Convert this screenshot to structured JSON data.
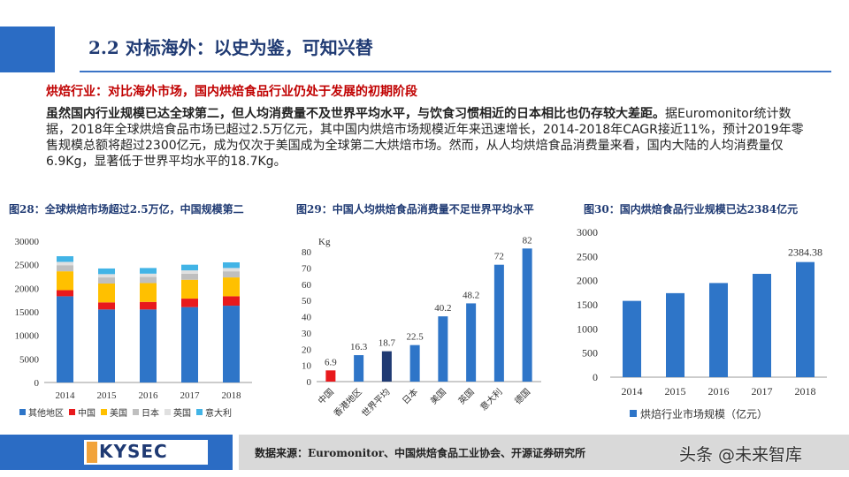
{
  "header": {
    "title": "2.2 对标海外：以史为鉴，可知兴替"
  },
  "sub_heading": "烘焙行业：对比海外市场，国内烘焙食品行业仍处于发展的初期阶段",
  "body": {
    "lead": "虽然国内行业规模已达全球第二，但人均消费量不及世界平均水平，与饮食习惯相近的日本相比也仍存较大差距。",
    "rest": "据Euromonitor统计数据，2018年全球烘焙食品市场已超过2.5万亿元，其中国内烘焙市场规模近年来迅速增长，2014-2018年CAGR接近11%，预计2019年零售规模总额将超过2300亿元，成为仅次于美国成为全球第二大烘焙市场。然而，从人均烘焙食品消费量来看，国内大陆的人均消费量仅6.9Kg，显著低于世界平均水平的18.7Kg。"
  },
  "fig28": {
    "title": "图28：全球烘焙市场超过2.5万亿，中国规模第二"
  },
  "fig29": {
    "title": "图29：中国人均烘焙食品消费量不足世界平均水平"
  },
  "fig30": {
    "title": "图30：国内烘焙食品行业规模已达2384亿元"
  },
  "footer": {
    "logo": "KYSEC",
    "source": "数据来源：Euromonitor、中国烘焙食品工业协会、开源证券研究所"
  },
  "watermark": "头条 @未来智库",
  "chart_data": [
    {
      "type": "bar",
      "stacked": true,
      "categories": [
        "2014",
        "2015",
        "2016",
        "2017",
        "2018"
      ],
      "series": [
        {
          "name": "其他地区",
          "color": "#2e75c8",
          "values": [
            18300,
            15500,
            15500,
            16000,
            16300
          ]
        },
        {
          "name": "中国",
          "color": "#e8191c",
          "values": [
            1300,
            1500,
            1600,
            1800,
            2000
          ]
        },
        {
          "name": "美国",
          "color": "#ffc000",
          "values": [
            4000,
            4000,
            4000,
            4000,
            4000
          ]
        },
        {
          "name": "日本",
          "color": "#bfbfbf",
          "values": [
            1300,
            1300,
            1300,
            1300,
            1300
          ]
        },
        {
          "name": "英国",
          "color": "#e0e0e0",
          "values": [
            700,
            700,
            700,
            700,
            700
          ]
        },
        {
          "name": "意大利",
          "color": "#42b4e6",
          "values": [
            1200,
            1200,
            1200,
            1200,
            1200
          ]
        }
      ],
      "ylim": [
        0,
        30000
      ],
      "yticks": [
        0,
        5000,
        10000,
        15000,
        20000,
        25000,
        30000
      ],
      "legend": "bottom"
    },
    {
      "type": "bar",
      "categories": [
        "中国",
        "香港地区",
        "世界平均",
        "日本",
        "美国",
        "英国",
        "意大利",
        "德国"
      ],
      "values": [
        6.9,
        16.3,
        18.7,
        22.5,
        40.2,
        48.2,
        72,
        82
      ],
      "value_labels": [
        "6.9",
        "16.3",
        "18.7",
        "22.5",
        "40.2",
        "48.2",
        "72",
        "82"
      ],
      "colors": [
        "#e8191c",
        "#2e75c8",
        "#1f3a73",
        "#2e75c8",
        "#2e75c8",
        "#2e75c8",
        "#2e75c8",
        "#2e75c8"
      ],
      "ylabel": "Kg",
      "ylim": [
        0,
        80
      ],
      "yticks": [
        0,
        10,
        20,
        30,
        40,
        50,
        60,
        70,
        80
      ]
    },
    {
      "type": "bar",
      "categories": [
        "2014",
        "2015",
        "2016",
        "2017",
        "2018"
      ],
      "series": [
        {
          "name": "烘焙行业市场规模（亿元）",
          "color": "#2e75c8",
          "values": [
            1580,
            1740,
            1950,
            2140,
            2384.38
          ]
        }
      ],
      "value_labels": [
        "",
        "",
        "",
        "",
        "2384.38"
      ],
      "ylim": [
        0,
        3000
      ],
      "yticks": [
        0,
        500,
        1000,
        1500,
        2000,
        2500,
        3000
      ],
      "legend": "bottom"
    }
  ]
}
